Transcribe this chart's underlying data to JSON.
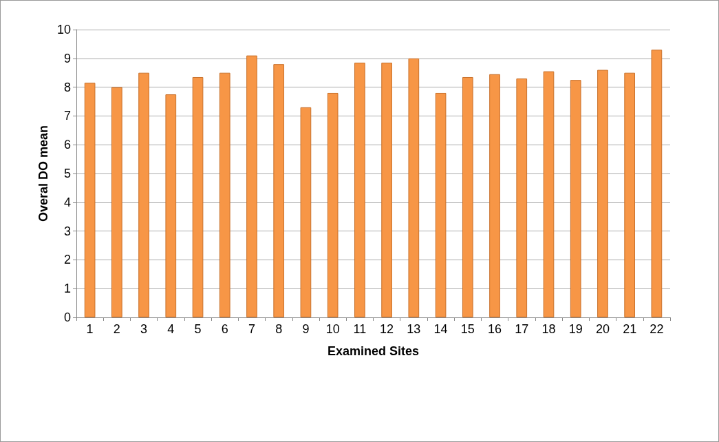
{
  "chart_data": {
    "type": "bar",
    "xlabel": "Examined Sites",
    "ylabel": "Overal DO mean",
    "categories": [
      "1",
      "2",
      "3",
      "4",
      "5",
      "6",
      "7",
      "8",
      "9",
      "10",
      "11",
      "12",
      "13",
      "14",
      "15",
      "16",
      "17",
      "18",
      "19",
      "20",
      "21",
      "22"
    ],
    "values": [
      8.15,
      8.0,
      8.5,
      7.75,
      8.35,
      8.5,
      9.1,
      8.8,
      7.3,
      7.8,
      8.85,
      8.85,
      9.0,
      7.8,
      8.35,
      8.45,
      8.3,
      8.55,
      8.25,
      8.6,
      8.5,
      9.3
    ],
    "color": "#f79646",
    "ylim": [
      0,
      10
    ],
    "yticks": [
      0,
      1,
      2,
      3,
      4,
      5,
      6,
      7,
      8,
      9,
      10
    ],
    "grid": "y"
  }
}
